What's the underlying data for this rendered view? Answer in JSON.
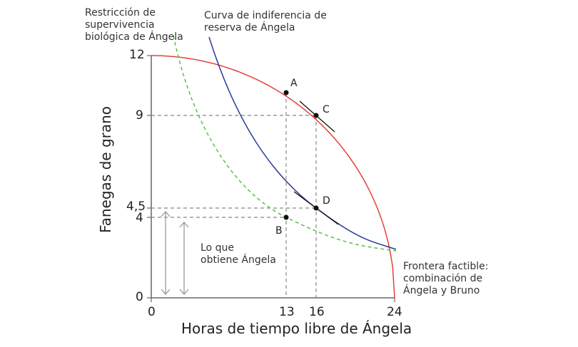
{
  "labels": {
    "survival": "Restricción de\nsupervivencia\nbiológica de Ángela",
    "indifference": "Curva de indiferencia de\nreserva de Ángela",
    "frontier": "Frontera factible:\ncombinación de\nÁngela y Bruno",
    "gets": "Lo que\nobtiene Ángela"
  },
  "axes": {
    "xlabel": "Horas de tiempo libre de Ángela",
    "ylabel": "Fanegas de grano",
    "xticks": [
      "0",
      "13",
      "16",
      "24"
    ],
    "yticks": [
      "0",
      "4",
      "4,5",
      "9",
      "12"
    ]
  },
  "points": [
    {
      "name": "A",
      "x": 13,
      "y": 10.1
    },
    {
      "name": "B",
      "x": 13,
      "y": 4
    },
    {
      "name": "C",
      "x": 16,
      "y": 9
    },
    {
      "name": "D",
      "x": 16,
      "y": 4.5
    }
  ],
  "colors": {
    "frontier": "#e8403a",
    "indifference": "#2b3a9a",
    "survival": "#4cbf3a",
    "axis": "#666666"
  }
}
